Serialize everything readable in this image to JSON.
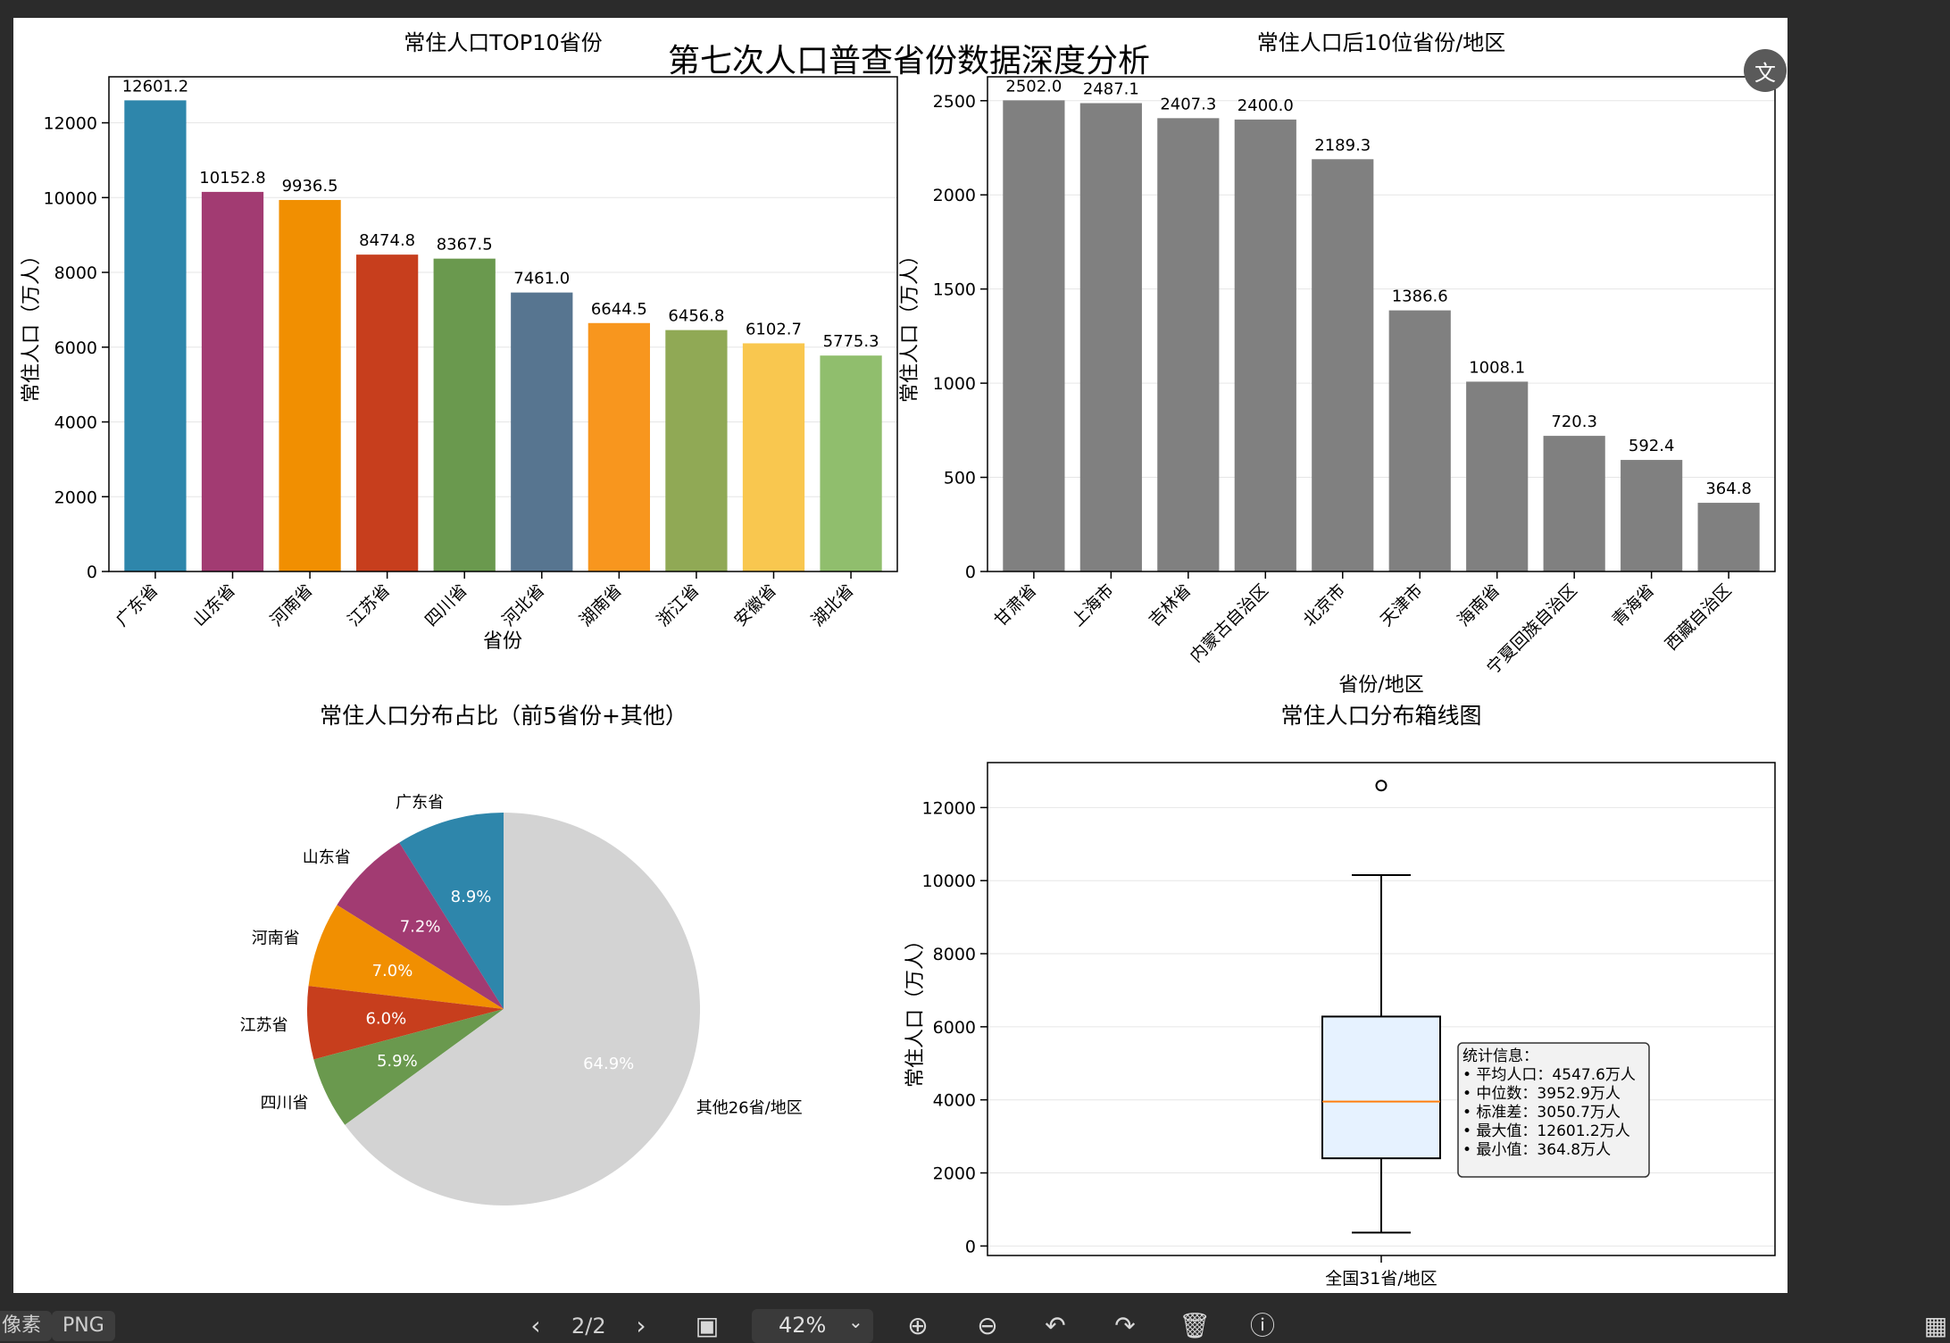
{
  "viewer": {
    "page_indicator": "2/2",
    "zoom": "42%",
    "chip_pixels": "像素",
    "chip_format": "PNG",
    "translate_icon": "文"
  },
  "colors": {
    "top10": [
      "#2e86ab",
      "#a23b72",
      "#f18f01",
      "#c73e1d",
      "#6a994e",
      "#577590",
      "#f8961e",
      "#90a955",
      "#f9c74f",
      "#90be6d"
    ],
    "bottom10": "#808080",
    "pie_other": "#d3d3d3",
    "box_fill": "#e6f2ff",
    "median": "#ff7f0e"
  },
  "chart_data": [
    {
      "type": "bar",
      "id": "top10",
      "suptitle": "第七次人口普查省份数据深度分析",
      "title": "常住人口TOP10省份",
      "xlabel": "省份",
      "ylabel": "常住人口（万人）",
      "categories": [
        "广东省",
        "山东省",
        "河南省",
        "江苏省",
        "四川省",
        "河北省",
        "湖南省",
        "浙江省",
        "安徽省",
        "湖北省"
      ],
      "values": [
        12601.2,
        10152.8,
        9936.5,
        8474.8,
        8367.5,
        7461.0,
        6644.5,
        6456.8,
        6102.7,
        5775.3
      ],
      "labels": [
        "12601.2",
        "10152.8",
        "9936.5",
        "8474.8",
        "8367.5",
        "7461.0",
        "6644.5",
        "6456.8",
        "6102.7",
        "5775.3"
      ],
      "ylim": [
        0,
        13231
      ],
      "yticks": [
        0,
        2000,
        4000,
        6000,
        8000,
        10000,
        12000
      ],
      "ytick_labels": [
        "0",
        "2000",
        "4000",
        "6000",
        "8000",
        "10000",
        "12000"
      ],
      "grid": true
    },
    {
      "type": "bar",
      "id": "bottom10",
      "title": "常住人口后10位省份/地区",
      "xlabel": "省份/地区",
      "ylabel": "常住人口（万人）",
      "categories": [
        "甘肃省",
        "上海市",
        "吉林省",
        "内蒙古自治区",
        "北京市",
        "天津市",
        "海南省",
        "宁夏回族自治区",
        "青海省",
        "西藏自治区"
      ],
      "values": [
        2502.0,
        2487.1,
        2407.3,
        2400.0,
        2189.3,
        1386.6,
        1008.1,
        720.3,
        592.4,
        364.8
      ],
      "labels": [
        "2502.0",
        "2487.1",
        "2407.3",
        "2400.0",
        "2189.3",
        "1386.6",
        "1008.1",
        "720.3",
        "592.4",
        "364.8"
      ],
      "ylim": [
        0,
        2627
      ],
      "yticks": [
        0,
        500,
        1000,
        1500,
        2000,
        2500
      ],
      "ytick_labels": [
        "0",
        "500",
        "1000",
        "1500",
        "2000",
        "2500"
      ],
      "grid": true
    },
    {
      "type": "pie",
      "id": "share",
      "title": "常住人口分布占比（前5省份+其他）",
      "slices": [
        {
          "label": "广东省",
          "value": 8.9,
          "pct": "8.9%"
        },
        {
          "label": "山东省",
          "value": 7.2,
          "pct": "7.2%"
        },
        {
          "label": "河南省",
          "value": 7.0,
          "pct": "7.0%"
        },
        {
          "label": "江苏省",
          "value": 6.0,
          "pct": "6.0%"
        },
        {
          "label": "四川省",
          "value": 5.9,
          "pct": "5.9%"
        },
        {
          "label": "其他26省/地区",
          "value": 64.9,
          "pct": "64.9%"
        }
      ],
      "start_angle_deg": 90,
      "direction": "counterclockwise"
    },
    {
      "type": "box",
      "id": "distribution",
      "title": "常住人口分布箱线图",
      "ylabel": "常住人口（万人）",
      "category": "全国31省/地区",
      "whisker_low": 364.8,
      "q1": 2400.0,
      "median": 3952.9,
      "q3": 6279.75,
      "whisker_high": 10152.8,
      "outliers": [
        12601.2
      ],
      "ylim": [
        -260,
        13231
      ],
      "yticks": [
        0,
        2000,
        4000,
        6000,
        8000,
        10000,
        12000
      ],
      "ytick_labels": [
        "0",
        "2000",
        "4000",
        "6000",
        "8000",
        "10000",
        "12000"
      ],
      "stats_title": "统计信息：",
      "stats_lines": [
        "• 平均人口：4547.6万人",
        "• 中位数：3952.9万人",
        "• 标准差：3050.7万人",
        "• 最大值：12601.2万人",
        "• 最小值：364.8万人"
      ],
      "grid": true
    }
  ]
}
